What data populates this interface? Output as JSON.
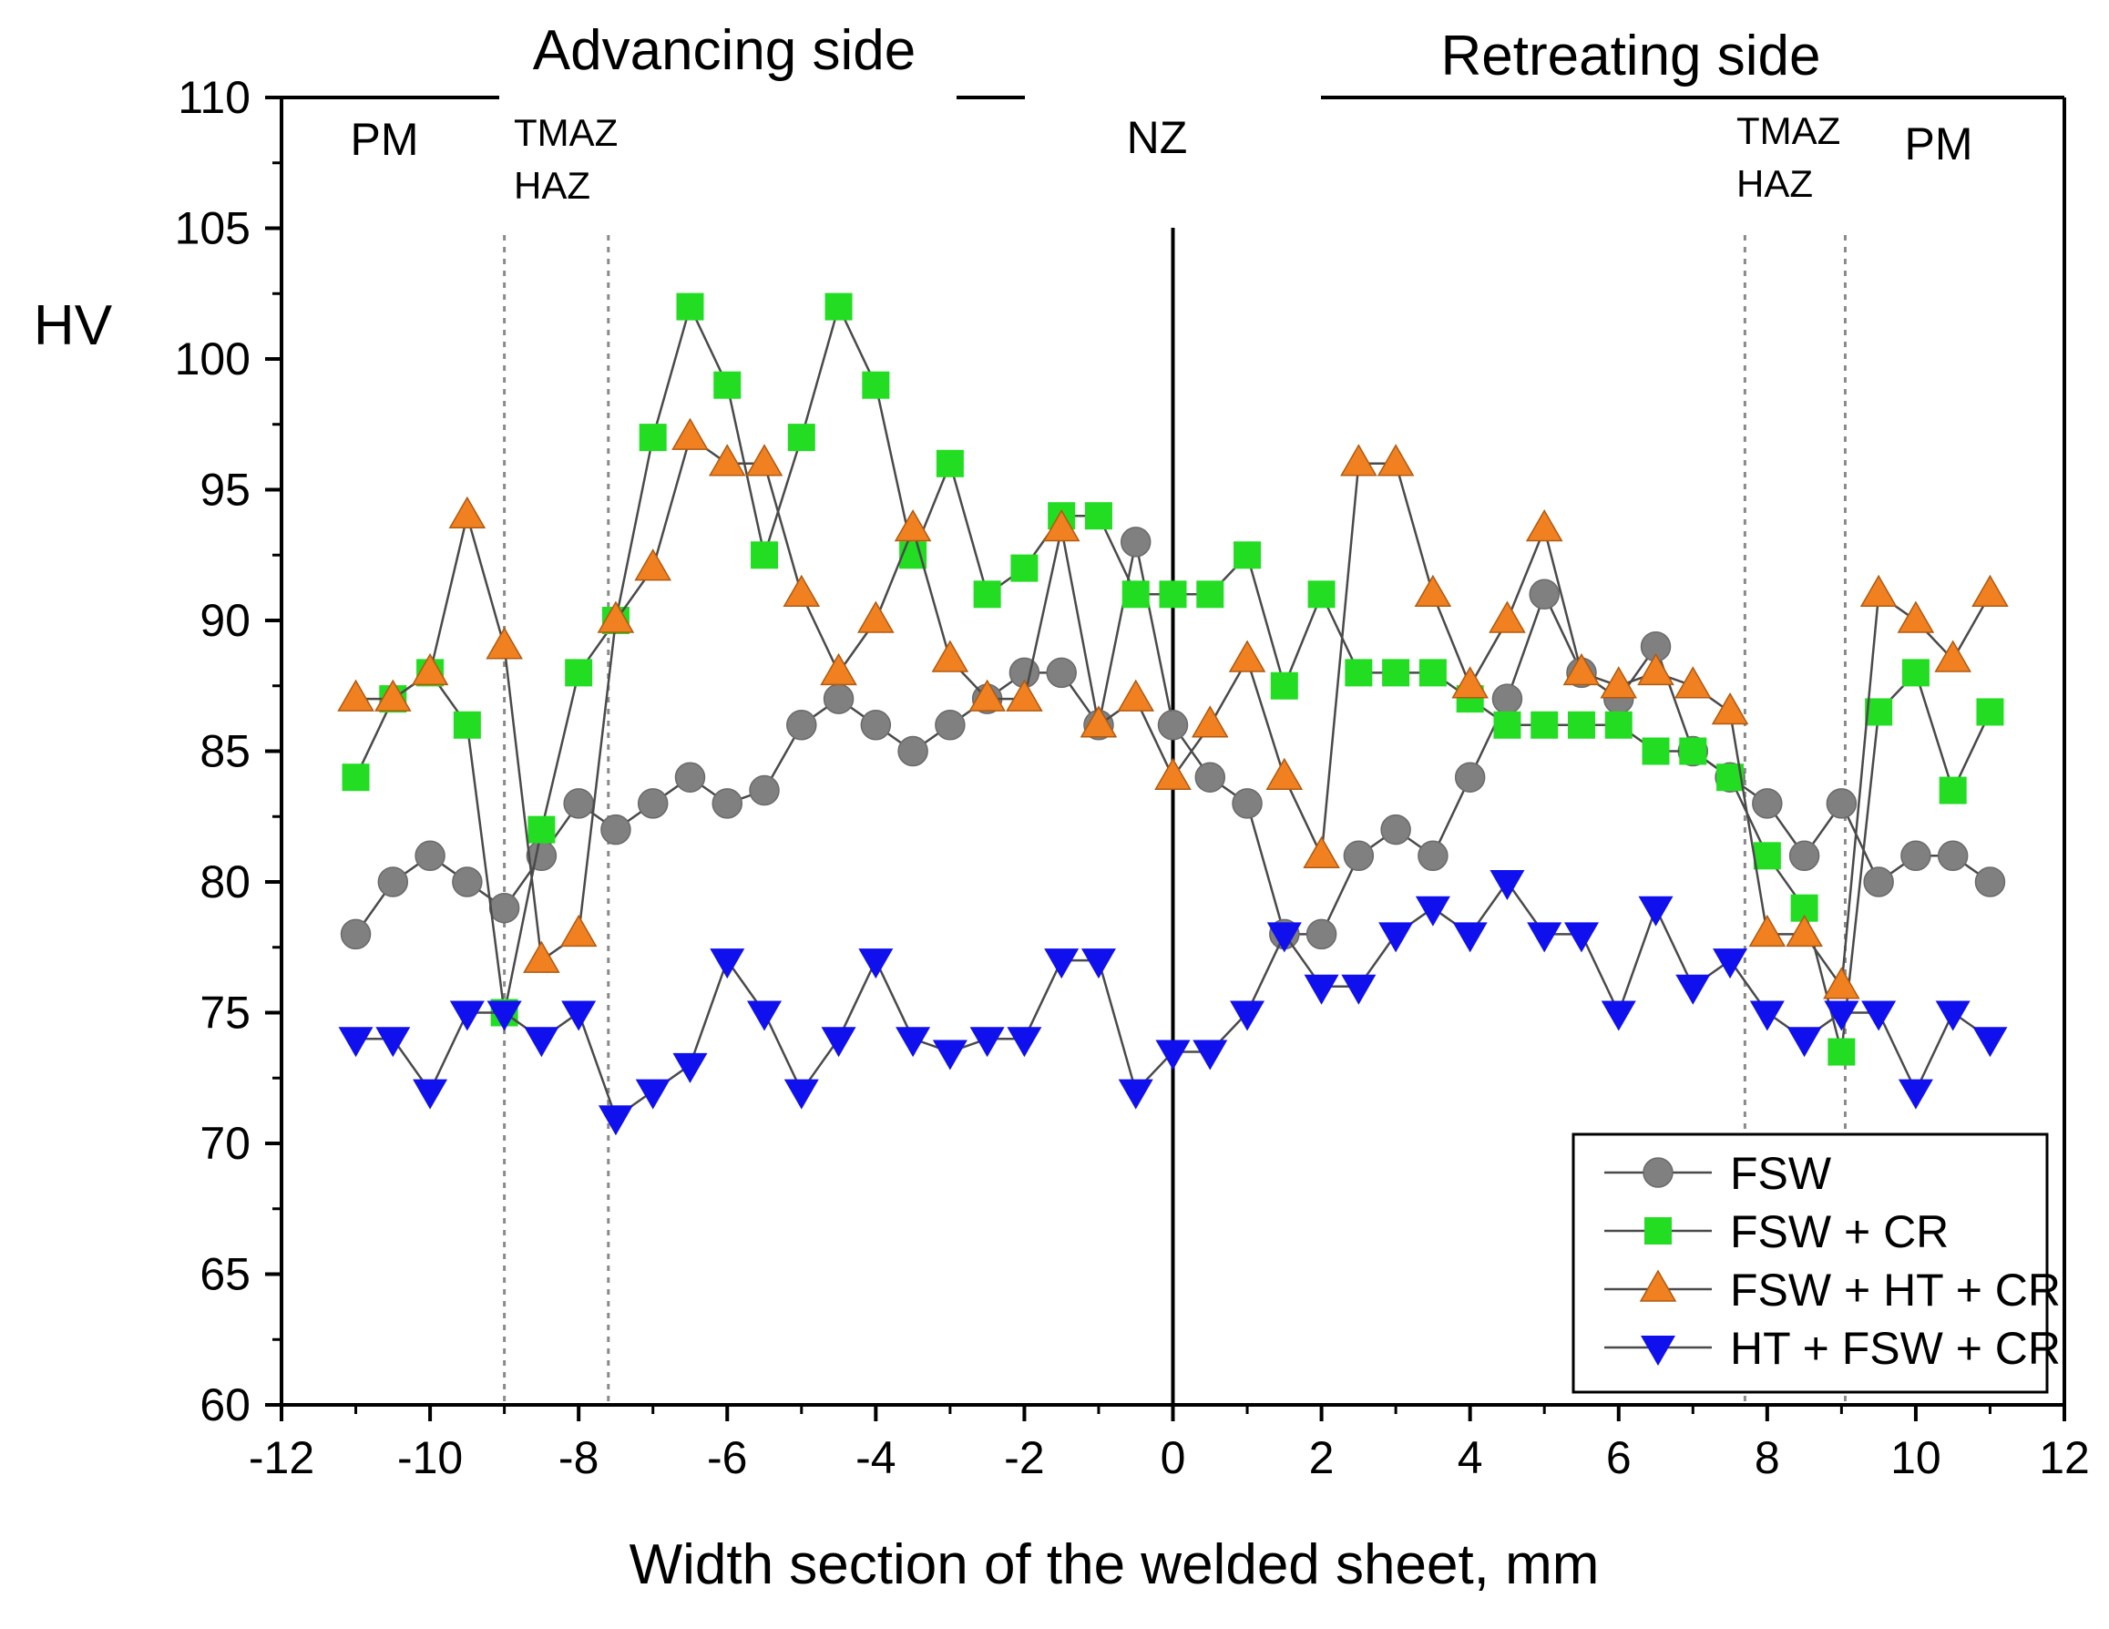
{
  "chart_data": {
    "type": "line",
    "title": "",
    "xlabel": "Width section of the welded sheet, mm",
    "ylabel": "HV",
    "xlim": [
      -12,
      12
    ],
    "ylim": [
      60,
      110
    ],
    "x_ticks": [
      -12,
      -10,
      -8,
      -6,
      -4,
      -2,
      0,
      2,
      4,
      6,
      8,
      10,
      12
    ],
    "y_ticks": [
      60,
      65,
      70,
      75,
      80,
      85,
      90,
      95,
      100,
      105,
      110
    ],
    "legend_position": "bottom-right",
    "side_labels": {
      "left": "Advancing side",
      "right": "Retreating side"
    },
    "zone_labels": {
      "pm_left": "PM",
      "tmaz_left": "TMAZ",
      "haz_left": "HAZ",
      "nz": "NZ",
      "tmaz_right": "TMAZ",
      "haz_right": "HAZ",
      "pm_right": "PM"
    },
    "zone_boundaries": [
      -9,
      -7.6,
      7.7,
      9.05
    ],
    "center_line": 0,
    "x": [
      -11,
      -10.5,
      -10,
      -9.5,
      -9,
      -8.5,
      -8,
      -7.5,
      -7,
      -6.5,
      -6,
      -5.5,
      -5,
      -4.5,
      -4,
      -3.5,
      -3,
      -2.5,
      -2,
      -1.5,
      -1,
      -0.5,
      0,
      0.5,
      1,
      1.5,
      2,
      2.5,
      3,
      3.5,
      4,
      4.5,
      5,
      5.5,
      6,
      6.5,
      7,
      7.5,
      8,
      8.5,
      9,
      9.5,
      10,
      10.5,
      11
    ],
    "series": [
      {
        "name": "FSW",
        "marker": "circle",
        "color": "#808080",
        "values": [
          78,
          80,
          81,
          80,
          79,
          81,
          83,
          82,
          83,
          84,
          83,
          83.5,
          86,
          87,
          86,
          85,
          86,
          87,
          88,
          88,
          86,
          93,
          86,
          84,
          83,
          78,
          78,
          81,
          82,
          81,
          84,
          87,
          91,
          88,
          87,
          89,
          85,
          84,
          83,
          81,
          83,
          80,
          81,
          81,
          80
        ]
      },
      {
        "name": "FSW + CR",
        "marker": "square",
        "color": "#22dd22",
        "values": [
          84,
          87,
          88,
          86,
          75,
          82,
          88,
          90,
          97,
          102,
          99,
          92.5,
          97,
          102,
          99,
          92.5,
          96,
          91,
          92,
          94,
          94,
          91,
          91,
          91,
          92.5,
          87.5,
          91,
          88,
          88,
          88,
          87,
          86,
          86,
          86,
          86,
          85,
          85,
          84,
          81,
          79,
          73.5,
          86.5,
          88,
          83.5,
          86.5
        ]
      },
      {
        "name": "FSW + HT + CR",
        "marker": "triangle-up",
        "color": "#f08020",
        "values": [
          87,
          87,
          88,
          94,
          89,
          77,
          78,
          90,
          92,
          97,
          96,
          96,
          91,
          88,
          90,
          93.5,
          88.5,
          87,
          87,
          93.5,
          86,
          87,
          84,
          86,
          88.5,
          84,
          81,
          96,
          96,
          91,
          87.5,
          90,
          93.5,
          88,
          87.5,
          88,
          87.5,
          86.5,
          78,
          78,
          76,
          91,
          90,
          88.5,
          91
        ]
      },
      {
        "name": "HT + FSW + CR",
        "marker": "triangle-down",
        "color": "#1010ee",
        "values": [
          74,
          74,
          72,
          75,
          75,
          74,
          75,
          71,
          72,
          73,
          77,
          75,
          72,
          74,
          77,
          74,
          73.5,
          74,
          74,
          77,
          77,
          72,
          73.5,
          73.5,
          75,
          78,
          76,
          76,
          78,
          79,
          78,
          80,
          78,
          78,
          75,
          79,
          76,
          77,
          75,
          74,
          75,
          75,
          72,
          75,
          74
        ]
      }
    ]
  }
}
